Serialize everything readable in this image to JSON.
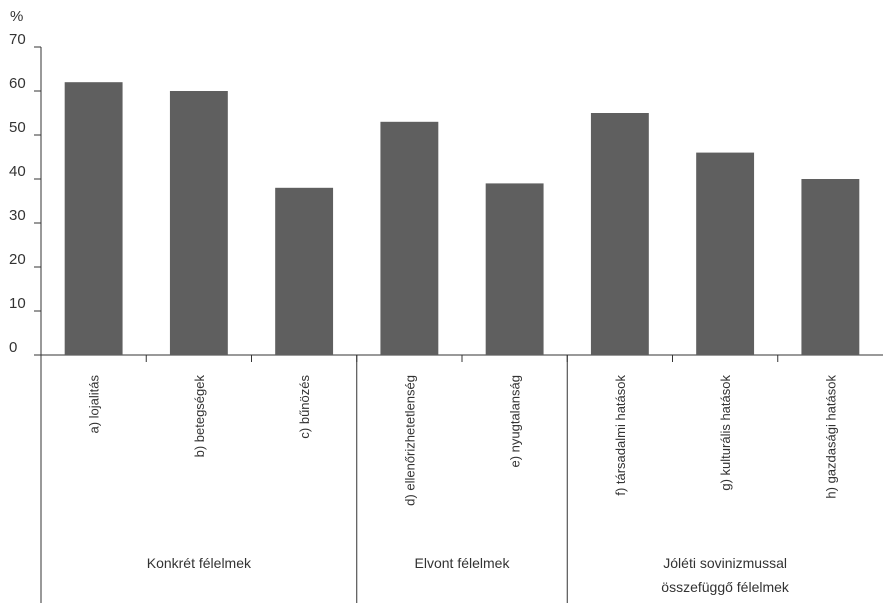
{
  "chart_data": {
    "type": "bar",
    "ylabel": "%",
    "ylim": [
      0,
      70
    ],
    "yticks": [
      0,
      10,
      20,
      30,
      40,
      50,
      60,
      70
    ],
    "grid": false,
    "legend": "none",
    "categories": [
      "a) lojalitás",
      "b) betegségek",
      "c) bűnözés",
      "d) ellenőrizhetetlenség",
      "e) nyugtalanság",
      "f) társadalmi hatások",
      "g) kulturális hatások",
      "h) gazdasági hatások"
    ],
    "values": [
      62,
      60,
      38,
      53,
      39,
      55,
      46,
      40
    ],
    "groups": [
      {
        "label_lines": [
          "Konkrét félelmek"
        ],
        "count": 3
      },
      {
        "label_lines": [
          "Elvont félelmek"
        ],
        "count": 2
      },
      {
        "label_lines": [
          "Jóléti sovinizmussal",
          "összefüggő félelmek"
        ],
        "count": 3
      }
    ],
    "colors": {
      "bar": "#5f5f5f",
      "axis": "#333333",
      "text": "#333333"
    }
  }
}
